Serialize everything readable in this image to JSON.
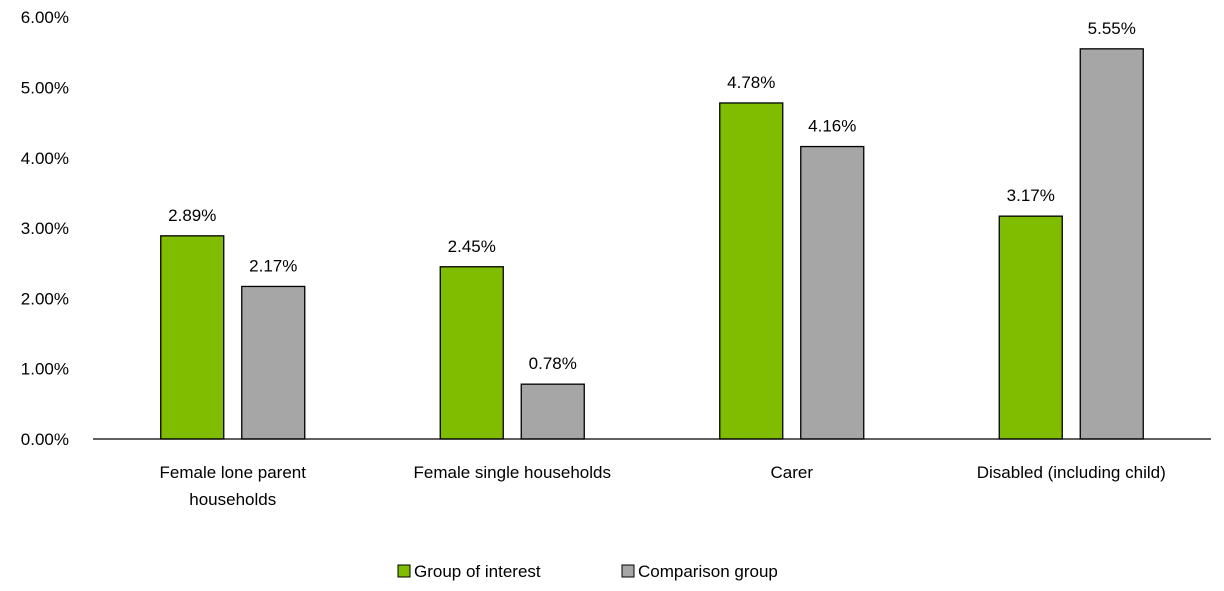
{
  "chart_data": {
    "type": "bar",
    "title": "",
    "xlabel": "",
    "ylabel": "",
    "categories": [
      [
        "Female lone parent",
        "households"
      ],
      [
        "Female single households"
      ],
      [
        "Carer"
      ],
      [
        "Disabled (including child)"
      ]
    ],
    "series": [
      {
        "name": "Group of interest",
        "color": "#80BC00",
        "values": [
          2.89,
          2.45,
          4.78,
          3.17
        ],
        "labels": [
          "2.89%",
          "2.45%",
          "4.78%",
          "3.17%"
        ]
      },
      {
        "name": "Comparison group",
        "color": "#A6A6A6",
        "values": [
          2.17,
          0.78,
          4.16,
          5.55
        ],
        "labels": [
          "2.17%",
          "0.78%",
          "4.16%",
          "5.55%"
        ]
      }
    ],
    "ylim": [
      0,
      6
    ],
    "yticks": [
      0,
      1,
      2,
      3,
      4,
      5,
      6
    ],
    "ytick_labels": [
      "0.00%",
      "1.00%",
      "2.00%",
      "3.00%",
      "4.00%",
      "5.00%",
      "6.00%"
    ],
    "grid": false,
    "legend_position": "bottom"
  }
}
